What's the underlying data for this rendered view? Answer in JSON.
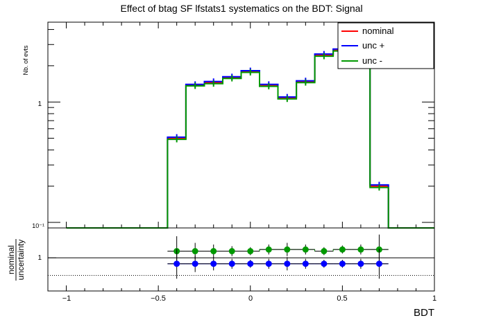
{
  "chart_data": [
    {
      "type": "line",
      "title": "Effect of btag SF lfstats1 systematics on the BDT: Signal",
      "ylabel": "Nb. of evts",
      "xlabel": "BDT",
      "yscale": "log",
      "ylim": [
        0.09,
        4.6
      ],
      "xlim": [
        -1.1,
        1.0
      ],
      "ytick_labels": [
        "10⁻¹",
        "1"
      ],
      "legend_position": "top-right",
      "bin_edges": [
        -1.0,
        -0.9,
        -0.8,
        -0.7,
        -0.6,
        -0.5,
        -0.45,
        -0.35,
        -0.25,
        -0.15,
        -0.05,
        0.05,
        0.15,
        0.25,
        0.35,
        0.45,
        0.55,
        0.65,
        0.75,
        0.85,
        0.95,
        1.0
      ],
      "series": [
        {
          "name": "nominal",
          "color": "#ff0000",
          "values": [
            0.09,
            0.09,
            0.09,
            0.09,
            0.09,
            0.09,
            0.5,
            1.38,
            1.45,
            1.6,
            1.8,
            1.38,
            1.08,
            1.48,
            2.45,
            2.7,
            2.75,
            0.2,
            0.09,
            0.09,
            0.09
          ]
        },
        {
          "name": "unc +",
          "color": "#0000ff",
          "values": [
            0.09,
            0.09,
            0.09,
            0.09,
            0.09,
            0.09,
            0.51,
            1.4,
            1.48,
            1.62,
            1.82,
            1.4,
            1.1,
            1.5,
            2.5,
            2.75,
            2.85,
            0.205,
            0.09,
            0.09,
            0.09
          ]
        },
        {
          "name": "unc -",
          "color": "#009900",
          "values": [
            0.09,
            0.09,
            0.09,
            0.09,
            0.09,
            0.09,
            0.49,
            1.36,
            1.42,
            1.57,
            1.76,
            1.35,
            1.06,
            1.45,
            2.4,
            2.65,
            2.7,
            0.195,
            0.09,
            0.09,
            0.09
          ]
        }
      ]
    },
    {
      "type": "scatter",
      "ylabel_top": "nominal",
      "ylabel_bottom": "uncertainty",
      "xlabel": "BDT",
      "xlim": [
        -1.1,
        1.0
      ],
      "ylim": [
        0.9,
        1.09
      ],
      "xtick_labels": [
        "−1",
        "−0.5",
        "0",
        "0.5",
        "1"
      ],
      "ytick_labels": [
        "1"
      ],
      "reference_line": 1.0,
      "dotted_line": 0.947,
      "x": [
        -0.4,
        -0.3,
        -0.2,
        -0.1,
        0.0,
        0.1,
        0.2,
        0.3,
        0.4,
        0.5,
        0.6,
        0.7
      ],
      "series": [
        {
          "name": "unc -",
          "color": "#009900",
          "values": [
            1.02,
            1.02,
            1.02,
            1.02,
            1.02,
            1.025,
            1.025,
            1.025,
            1.02,
            1.025,
            1.025,
            1.025
          ],
          "errors": [
            0.045,
            0.025,
            0.02,
            0.015,
            0.012,
            0.015,
            0.02,
            0.015,
            0.012,
            0.012,
            0.015,
            0.045
          ]
        },
        {
          "name": "unc +",
          "color": "#0000ff",
          "values": [
            0.982,
            0.982,
            0.982,
            0.982,
            0.982,
            0.982,
            0.982,
            0.982,
            0.982,
            0.982,
            0.982,
            0.982
          ],
          "errors": [
            0.045,
            0.025,
            0.02,
            0.015,
            0.012,
            0.015,
            0.02,
            0.015,
            0.012,
            0.012,
            0.015,
            0.045
          ]
        }
      ]
    }
  ]
}
